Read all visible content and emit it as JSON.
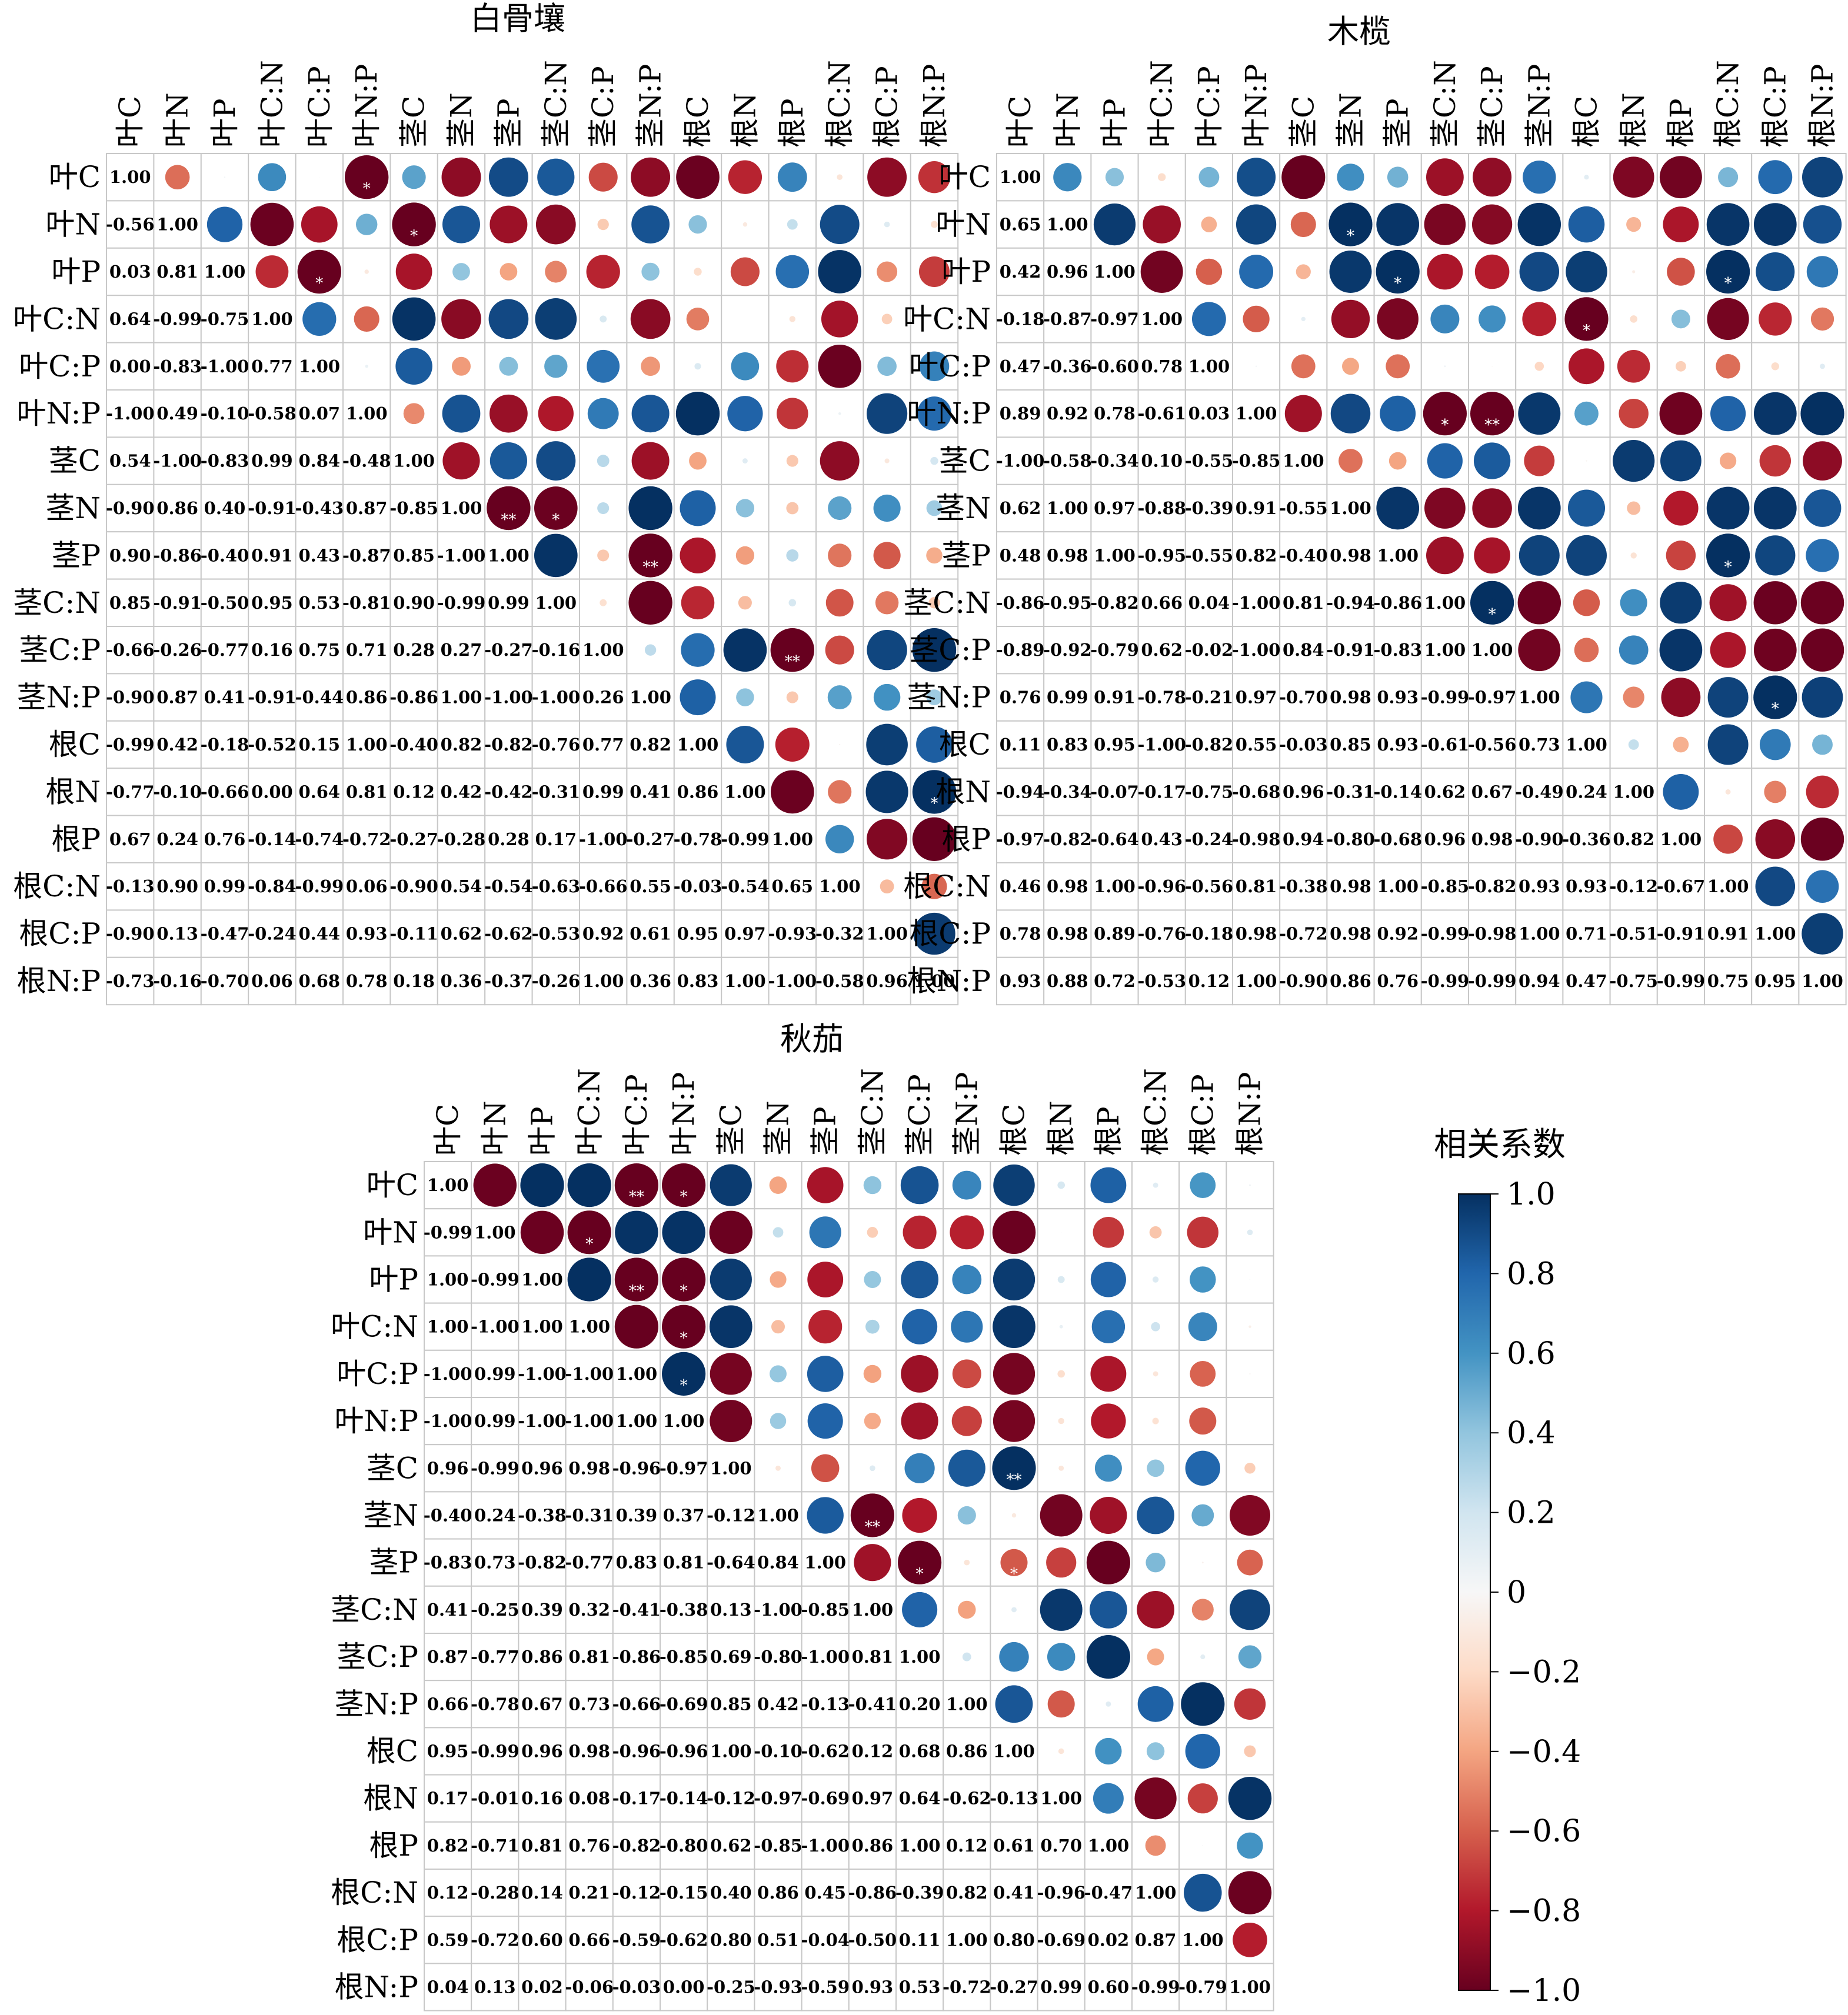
{
  "chart_data": [
    {
      "type": "heatmap",
      "subtype": "correlogram",
      "title": "白骨壤",
      "labels": [
        "叶C",
        "叶N",
        "叶P",
        "叶C:N",
        "叶C:P",
        "叶N:P",
        "茎C",
        "茎N",
        "茎P",
        "茎C:N",
        "茎C:P",
        "茎N:P",
        "根C",
        "根N",
        "根P",
        "根C:N",
        "根C:P",
        "根N:P"
      ],
      "lower": [
        [],
        [
          -0.56
        ],
        [
          0.03,
          0.81
        ],
        [
          0.64,
          -0.99,
          -0.75
        ],
        [
          0.0,
          -0.83,
          -1.0,
          0.77
        ],
        [
          -1.0,
          0.49,
          -0.1,
          -0.58,
          0.07
        ],
        [
          0.54,
          -1.0,
          -0.83,
          0.99,
          0.84,
          -0.48
        ],
        [
          -0.9,
          0.86,
          0.4,
          -0.91,
          -0.43,
          0.87,
          -0.85
        ],
        [
          0.9,
          -0.86,
          -0.4,
          0.91,
          0.43,
          -0.87,
          0.85,
          -1.0
        ],
        [
          0.85,
          -0.91,
          -0.5,
          0.95,
          0.53,
          -0.81,
          0.9,
          -0.99,
          0.99
        ],
        [
          -0.66,
          -0.26,
          -0.77,
          0.16,
          0.75,
          0.71,
          0.28,
          0.27,
          -0.27,
          -0.16
        ],
        [
          -0.9,
          0.87,
          0.41,
          -0.91,
          -0.44,
          0.86,
          -0.86,
          1.0,
          -1.0,
          -1.0,
          0.26
        ],
        [
          -0.99,
          0.42,
          -0.18,
          -0.52,
          0.15,
          1.0,
          -0.4,
          0.82,
          -0.82,
          -0.76,
          0.77,
          0.82
        ],
        [
          -0.77,
          -0.1,
          -0.66,
          0.0,
          0.64,
          0.81,
          0.12,
          0.42,
          -0.42,
          -0.31,
          0.99,
          0.41,
          0.86
        ],
        [
          0.67,
          0.24,
          0.76,
          -0.14,
          -0.74,
          -0.72,
          -0.27,
          -0.28,
          0.28,
          0.17,
          -1.0,
          -0.27,
          -0.78,
          -0.99
        ],
        [
          -0.13,
          0.9,
          0.99,
          -0.84,
          -0.99,
          0.06,
          -0.9,
          0.54,
          -0.54,
          -0.63,
          -0.66,
          0.55,
          -0.03,
          -0.54,
          0.65
        ],
        [
          -0.9,
          0.13,
          -0.47,
          -0.24,
          0.44,
          0.93,
          -0.11,
          0.62,
          -0.62,
          -0.53,
          0.92,
          0.61,
          0.95,
          0.97,
          -0.93,
          -0.32
        ],
        [
          -0.73,
          -0.16,
          -0.7,
          0.06,
          0.68,
          0.78,
          0.18,
          0.36,
          -0.37,
          -0.26,
          1.0,
          0.36,
          0.83,
          1.0,
          -1.0,
          -0.58,
          0.96
        ]
      ],
      "significance": [
        {
          "row": "叶C",
          "col": "叶N:P",
          "mark": "*"
        },
        {
          "row": "叶N",
          "col": "茎C",
          "mark": "*"
        },
        {
          "row": "叶P",
          "col": "叶C:P",
          "mark": "*"
        },
        {
          "row": "茎N",
          "col": "茎P",
          "mark": "**"
        },
        {
          "row": "茎N",
          "col": "茎C:N",
          "mark": "*"
        },
        {
          "row": "茎P",
          "col": "茎N:P",
          "mark": "**"
        },
        {
          "row": "茎C:P",
          "col": "根P",
          "mark": "**"
        },
        {
          "row": "根N",
          "col": "根N:P",
          "mark": "*"
        }
      ]
    },
    {
      "type": "heatmap",
      "subtype": "correlogram",
      "title": "木榄",
      "labels": [
        "叶C",
        "叶N",
        "叶P",
        "叶C:N",
        "叶C:P",
        "叶N:P",
        "茎C",
        "茎N",
        "茎P",
        "茎C:N",
        "茎C:P",
        "茎N:P",
        "根C",
        "根N",
        "根P",
        "根C:N",
        "根C:P",
        "根N:P"
      ],
      "lower": [
        [],
        [
          0.65
        ],
        [
          0.42,
          0.96
        ],
        [
          -0.18,
          -0.87,
          -0.97
        ],
        [
          0.47,
          -0.36,
          -0.6,
          0.78
        ],
        [
          0.89,
          0.92,
          0.78,
          -0.61,
          0.03
        ],
        [
          -1.0,
          -0.58,
          -0.34,
          0.1,
          -0.55,
          -0.85
        ],
        [
          0.62,
          1.0,
          0.97,
          -0.88,
          -0.39,
          0.91,
          -0.55
        ],
        [
          0.48,
          0.98,
          1.0,
          -0.95,
          -0.55,
          0.82,
          -0.4,
          0.98
        ],
        [
          -0.86,
          -0.95,
          -0.82,
          0.66,
          0.04,
          -1.0,
          0.81,
          -0.94,
          -0.86
        ],
        [
          -0.89,
          -0.92,
          -0.79,
          0.62,
          -0.02,
          -1.0,
          0.84,
          -0.91,
          -0.83,
          1.0
        ],
        [
          0.76,
          0.99,
          0.91,
          -0.78,
          -0.21,
          0.97,
          -0.7,
          0.98,
          0.93,
          -0.99,
          -0.97
        ],
        [
          0.11,
          0.83,
          0.95,
          -1.0,
          -0.82,
          0.55,
          -0.03,
          0.85,
          0.93,
          -0.61,
          -0.56,
          0.73
        ],
        [
          -0.94,
          -0.34,
          -0.07,
          -0.17,
          -0.75,
          -0.68,
          0.96,
          -0.31,
          -0.14,
          0.62,
          0.67,
          -0.49,
          0.24
        ],
        [
          -0.97,
          -0.82,
          -0.64,
          0.43,
          -0.24,
          -0.98,
          0.94,
          -0.8,
          -0.68,
          0.96,
          0.98,
          -0.9,
          -0.36,
          0.82
        ],
        [
          0.46,
          0.98,
          1.0,
          -0.96,
          -0.56,
          0.81,
          -0.38,
          0.98,
          1.0,
          -0.85,
          -0.82,
          0.93,
          0.93,
          -0.12,
          -0.67
        ],
        [
          0.78,
          0.98,
          0.89,
          -0.76,
          -0.18,
          0.98,
          -0.72,
          0.98,
          0.92,
          -0.99,
          -0.98,
          1.0,
          0.71,
          -0.51,
          -0.91,
          0.91
        ],
        [
          0.93,
          0.88,
          0.72,
          -0.53,
          0.12,
          1.0,
          -0.9,
          0.86,
          0.76,
          -0.99,
          -0.99,
          0.94,
          0.47,
          -0.75,
          -0.99,
          0.75,
          0.95
        ]
      ],
      "significance": [
        {
          "row": "叶N",
          "col": "茎N",
          "mark": "*"
        },
        {
          "row": "叶P",
          "col": "茎P",
          "mark": "*"
        },
        {
          "row": "叶P",
          "col": "根C:N",
          "mark": "*"
        },
        {
          "row": "叶C:N",
          "col": "根C",
          "mark": "*"
        },
        {
          "row": "叶N:P",
          "col": "茎C:N",
          "mark": "*"
        },
        {
          "row": "叶N:P",
          "col": "茎C:P",
          "mark": "**"
        },
        {
          "row": "茎P",
          "col": "根C:N",
          "mark": "*"
        },
        {
          "row": "茎C:N",
          "col": "茎C:P",
          "mark": "*"
        },
        {
          "row": "茎N:P",
          "col": "根C:P",
          "mark": "*"
        }
      ]
    },
    {
      "type": "heatmap",
      "subtype": "correlogram",
      "title": "秋茄",
      "labels": [
        "叶C",
        "叶N",
        "叶P",
        "叶C:N",
        "叶C:P",
        "叶N:P",
        "茎C",
        "茎N",
        "茎P",
        "茎C:N",
        "茎C:P",
        "茎N:P",
        "根C",
        "根N",
        "根P",
        "根C:N",
        "根C:P",
        "根N:P"
      ],
      "lower": [
        [],
        [
          -0.99
        ],
        [
          1.0,
          -0.99
        ],
        [
          1.0,
          -1.0,
          1.0
        ],
        [
          -1.0,
          0.99,
          -1.0,
          -1.0
        ],
        [
          -1.0,
          0.99,
          -1.0,
          -1.0,
          1.0
        ],
        [
          0.96,
          -0.99,
          0.96,
          0.98,
          -0.96,
          -0.97
        ],
        [
          -0.4,
          0.24,
          -0.38,
          -0.31,
          0.39,
          0.37,
          -0.12
        ],
        [
          -0.83,
          0.73,
          -0.82,
          -0.77,
          0.83,
          0.81,
          -0.64,
          0.84
        ],
        [
          0.41,
          -0.25,
          0.39,
          0.32,
          -0.41,
          -0.38,
          0.13,
          -1.0,
          -0.85
        ],
        [
          0.87,
          -0.77,
          0.86,
          0.81,
          -0.86,
          -0.85,
          0.69,
          -0.8,
          -1.0,
          0.81
        ],
        [
          0.66,
          -0.78,
          0.67,
          0.73,
          -0.66,
          -0.69,
          0.85,
          0.42,
          -0.13,
          -0.41,
          0.2
        ],
        [
          0.95,
          -0.99,
          0.96,
          0.98,
          -0.96,
          -0.96,
          1.0,
          -0.1,
          -0.62,
          0.12,
          0.68,
          0.86
        ],
        [
          0.17,
          -0.01,
          0.16,
          0.08,
          -0.17,
          -0.14,
          -0.12,
          -0.97,
          -0.69,
          0.97,
          0.64,
          -0.62,
          -0.13
        ],
        [
          0.82,
          -0.71,
          0.81,
          0.76,
          -0.82,
          -0.8,
          0.62,
          -0.85,
          -1.0,
          0.86,
          1.0,
          0.12,
          0.61,
          0.7
        ],
        [
          0.12,
          -0.28,
          0.14,
          0.21,
          -0.12,
          -0.15,
          0.4,
          0.86,
          0.45,
          -0.86,
          -0.39,
          0.82,
          0.41,
          -0.96,
          -0.47
        ],
        [
          0.59,
          -0.72,
          0.6,
          0.66,
          -0.59,
          -0.62,
          0.8,
          0.51,
          -0.04,
          -0.5,
          0.11,
          1.0,
          0.8,
          -0.69,
          0.02,
          0.87
        ],
        [
          0.04,
          0.13,
          0.02,
          -0.06,
          -0.03,
          0.0,
          -0.25,
          -0.93,
          -0.59,
          0.93,
          0.53,
          -0.72,
          -0.27,
          0.99,
          0.6,
          -0.99,
          -0.79
        ]
      ],
      "significance": [
        {
          "row": "叶C",
          "col": "叶C:P",
          "mark": "**"
        },
        {
          "row": "叶C",
          "col": "叶N:P",
          "mark": "*"
        },
        {
          "row": "叶N",
          "col": "叶C:N",
          "mark": "*"
        },
        {
          "row": "叶P",
          "col": "叶C:P",
          "mark": "**"
        },
        {
          "row": "叶P",
          "col": "叶N:P",
          "mark": "*"
        },
        {
          "row": "叶C:N",
          "col": "叶N:P",
          "mark": "*"
        },
        {
          "row": "叶C:P",
          "col": "叶N:P",
          "mark": "*"
        },
        {
          "row": "茎C",
          "col": "根C",
          "mark": "**"
        },
        {
          "row": "茎N",
          "col": "茎C:N",
          "mark": "**"
        },
        {
          "row": "茎P",
          "col": "茎C:P",
          "mark": "*"
        },
        {
          "row": "茎P",
          "col": "根C",
          "mark": "*"
        }
      ]
    }
  ],
  "colorbar": {
    "title": "相关系数",
    "ticks": [
      "1.0",
      "0.8",
      "0.6",
      "0.4",
      "0.2",
      "0",
      "−0.2",
      "−0.4",
      "−0.6",
      "−0.8",
      "−1.0"
    ],
    "colors": [
      "#67001f",
      "#b2182b",
      "#d6604d",
      "#f4a582",
      "#fddbc7",
      "#f7f7f7",
      "#d1e5f0",
      "#92c5de",
      "#4393c3",
      "#2166ac",
      "#053061"
    ]
  }
}
